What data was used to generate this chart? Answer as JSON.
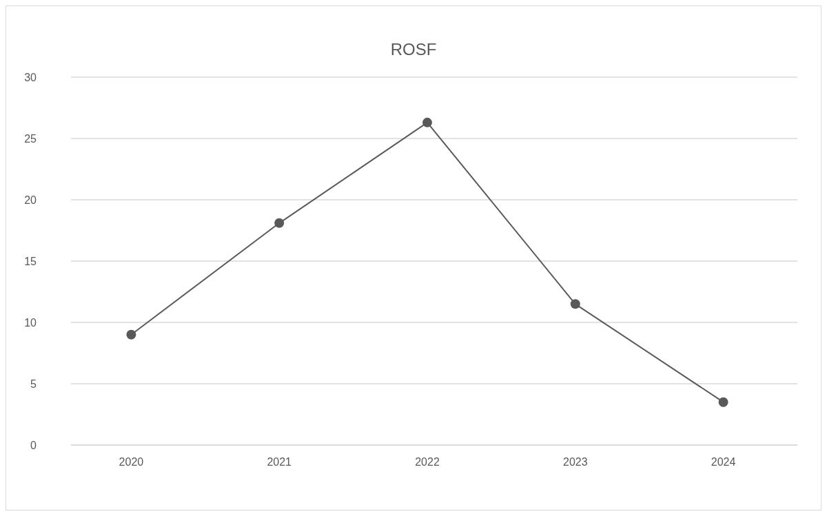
{
  "chart_data": {
    "type": "line",
    "title": "ROSF",
    "categories": [
      "2020",
      "2021",
      "2022",
      "2023",
      "2024"
    ],
    "series": [
      {
        "color": "#595959",
        "values": [
          9,
          18.1,
          26.3,
          11.5,
          3.5
        ]
      }
    ],
    "ylim": [
      0,
      30
    ],
    "yticks": [
      0,
      5,
      10,
      15,
      20,
      25,
      30
    ],
    "grid": "y",
    "marker": "circle",
    "line_style": "solid"
  }
}
